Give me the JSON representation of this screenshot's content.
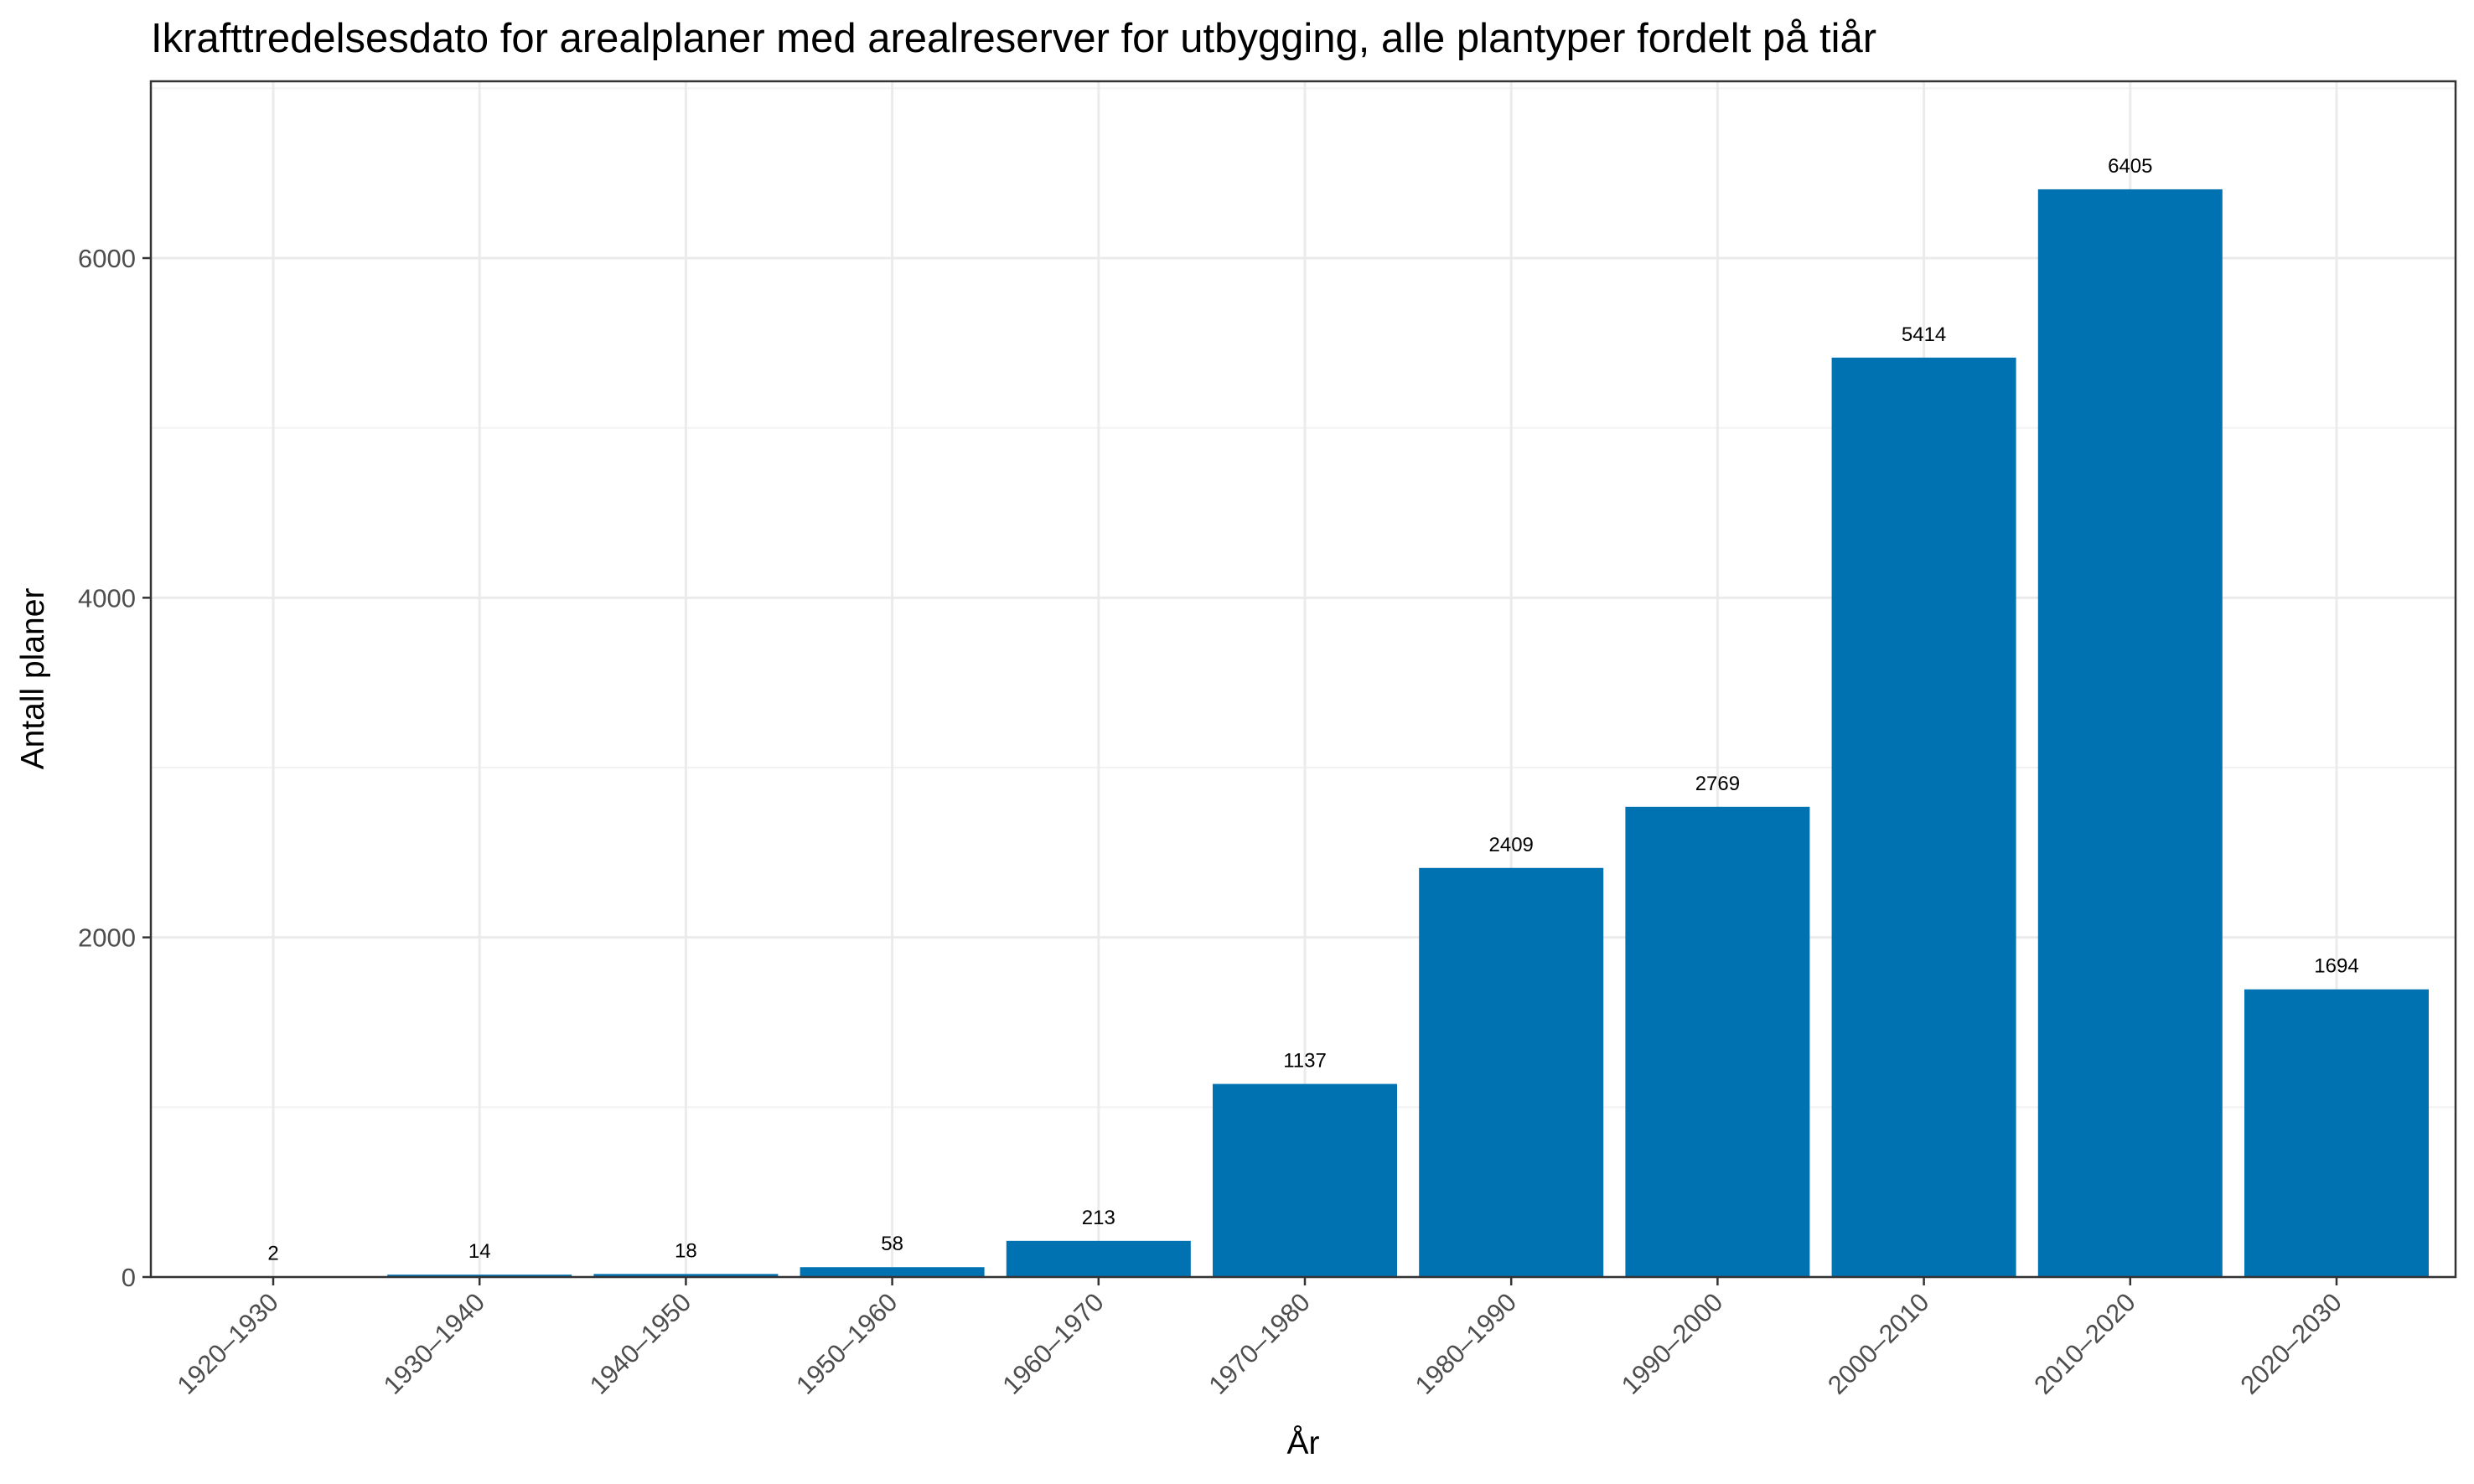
{
  "chart_data": {
    "type": "bar",
    "title": "Ikrafttredelsesdato for arealplaner med arealreserver for utbygging, alle plantyper fordelt på tiår",
    "xlabel": "År",
    "ylabel": "Antall planer",
    "categories": [
      "1920–1930",
      "1930–1940",
      "1940–1950",
      "1950–1960",
      "1960–1970",
      "1970–1980",
      "1980–1990",
      "1990–2000",
      "2000–2010",
      "2010–2020",
      "2020–2030"
    ],
    "values": [
      2,
      14,
      18,
      58,
      213,
      1137,
      2409,
      2769,
      5414,
      6405,
      1694
    ],
    "data_labels": [
      "2",
      "14",
      "18",
      "58",
      "213",
      "1137",
      "2409",
      "2769",
      "5414",
      "6405",
      "1694"
    ],
    "ylim": [
      0,
      7000
    ],
    "yticks": [
      0,
      2000,
      4000,
      6000
    ],
    "ytick_labels": [
      "0",
      "2000",
      "4000",
      "6000"
    ],
    "grid": true,
    "legend": "none",
    "bar_color": "#0072b2"
  }
}
